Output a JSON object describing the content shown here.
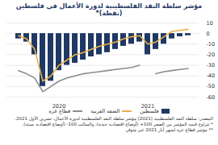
{
  "chart_data": {
    "type": "bar",
    "title": "مؤشر سلطة النقد الفلسطينية لدورة الأعمال في فلسطين (نقطة)*",
    "categories": [
      null,
      null,
      null,
      null,
      null,
      "2020",
      null,
      null,
      null,
      null,
      null,
      null,
      null,
      null,
      null,
      null,
      "2021",
      null,
      null,
      null,
      null,
      null
    ],
    "series": [
      {
        "name": "فلسطين",
        "type": "bar",
        "color": "#1f3864",
        "values": [
          -5,
          -8,
          -20,
          -50,
          -45,
          -35,
          -30,
          -28,
          -25,
          -22,
          -20,
          -18,
          -15,
          -12,
          -10,
          -8,
          -20,
          -15,
          -10,
          -5,
          -3,
          -2
        ]
      },
      {
        "name": "الضفة الغربية",
        "type": "line",
        "color": "#e8b04a",
        "values": [
          -2,
          -5,
          -15,
          -45,
          -40,
          -30,
          -25,
          -20,
          -18,
          -15,
          -12,
          -10,
          -8,
          -5,
          -3,
          -2,
          -10,
          -8,
          -3,
          2,
          3,
          4
        ]
      },
      {
        "name": "قطاع غزة",
        "type": "line",
        "color": "#8c8c8c",
        "values": [
          -35,
          -38,
          -42,
          -55,
          -50,
          -45,
          -42,
          -40,
          -38,
          -37,
          -36,
          -35,
          -34,
          -33,
          -32,
          -30,
          null,
          -38,
          -36,
          -35,
          -34,
          -33
        ]
      }
    ],
    "ylim": [
      -60,
      10
    ],
    "yticks": [
      10,
      0,
      -10,
      -20,
      -30,
      -40,
      -50,
      -60
    ],
    "grid": true,
    "legend": "bottom",
    "notes": [
      "المصدر: سلطة النقد الفلسطينية (2021) مؤشر سلطة النقد الفلسطينية لدورة الأعمال، تشرين الأول 2021.",
      "* تتراوح قيمة المؤشر بين الصفر 100+ (أوضاع اقتصادية جيدة)، والسالب 100- (أوضاع اقتصادية سيئة).",
      "** مؤشر قطاع غزة لشهر أيار 2021 غير متوفر."
    ]
  }
}
